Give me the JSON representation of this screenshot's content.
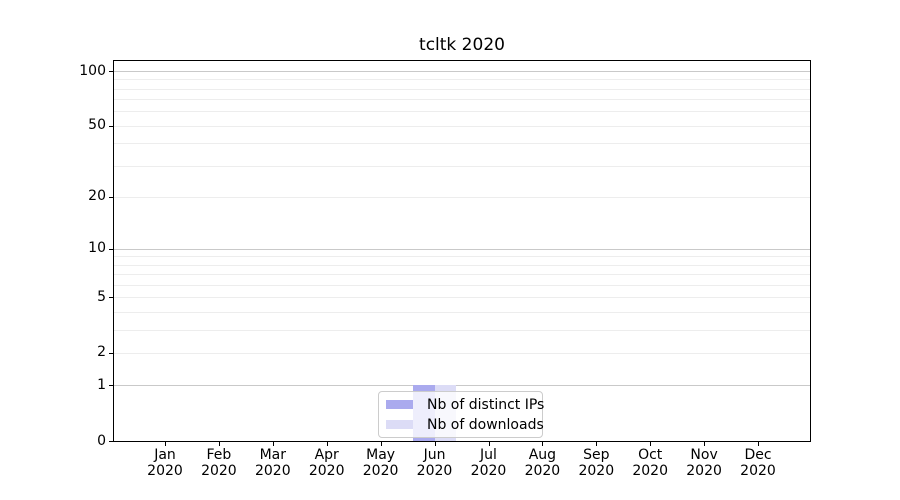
{
  "chart_data": {
    "type": "bar",
    "title": "tcltk 2020",
    "x_months": [
      "Jan",
      "Feb",
      "Mar",
      "Apr",
      "May",
      "Jun",
      "Jul",
      "Aug",
      "Sep",
      "Oct",
      "Nov",
      "Dec"
    ],
    "x_year": "2020",
    "categories": [
      "Jan 2020",
      "Feb 2020",
      "Mar 2020",
      "Apr 2020",
      "May 2020",
      "Jun 2020",
      "Jul 2020",
      "Aug 2020",
      "Sep 2020",
      "Oct 2020",
      "Nov 2020",
      "Dec 2020"
    ],
    "series": [
      {
        "name": "Nb of distinct IPs",
        "color": "#aaaaee",
        "values": [
          0,
          0,
          0,
          0,
          0,
          1,
          0,
          0,
          0,
          0,
          0,
          0
        ]
      },
      {
        "name": "Nb of downloads",
        "color": "#dcdcf6",
        "values": [
          0,
          0,
          0,
          0,
          0,
          1,
          0,
          0,
          0,
          0,
          0,
          0
        ]
      }
    ],
    "y_scale": "log1p",
    "y_ticks": [
      0,
      1,
      2,
      5,
      10,
      20,
      50,
      100
    ],
    "ylim": [
      0,
      100
    ],
    "grid": {
      "major_values": [
        1,
        10,
        100
      ],
      "minor_values": [
        2,
        3,
        4,
        5,
        6,
        7,
        8,
        9,
        20,
        30,
        40,
        50,
        60,
        70,
        80,
        90
      ],
      "major_color": "#c9c9c9",
      "minor_color": "#ededed"
    },
    "legend_position": "lower center",
    "axis_color": "#000000",
    "text_color": "#000000",
    "background": "#ffffff"
  }
}
